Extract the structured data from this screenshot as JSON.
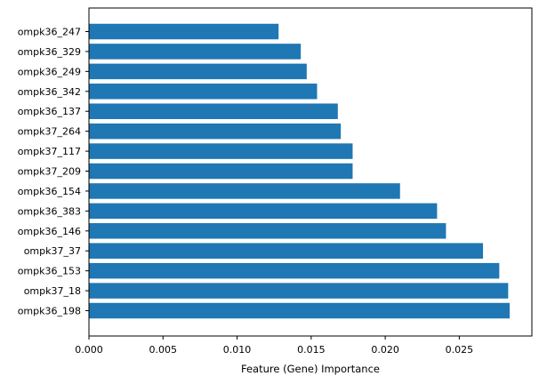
{
  "chart_data": {
    "type": "bar",
    "orientation": "horizontal",
    "categories": [
      "ompk36_247",
      "ompk36_329",
      "ompk36_249",
      "ompk36_342",
      "ompk36_137",
      "ompk37_264",
      "ompk37_117",
      "ompk37_209",
      "ompk36_154",
      "ompk36_383",
      "ompk36_146",
      "ompk37_37",
      "ompk36_153",
      "ompk37_18",
      "ompk36_198"
    ],
    "values": [
      0.0128,
      0.0143,
      0.0147,
      0.0154,
      0.0168,
      0.017,
      0.0178,
      0.0178,
      0.021,
      0.0235,
      0.0241,
      0.0266,
      0.0277,
      0.0283,
      0.0284
    ],
    "bar_color": "#1f77b4",
    "xlabel": "Feature (Gene) Importance",
    "ylabel": "",
    "title": "",
    "xlim": [
      0,
      0.0299
    ],
    "xticks": [
      "0.000",
      "0.005",
      "0.010",
      "0.015",
      "0.020",
      "0.025"
    ],
    "grid": false
  }
}
